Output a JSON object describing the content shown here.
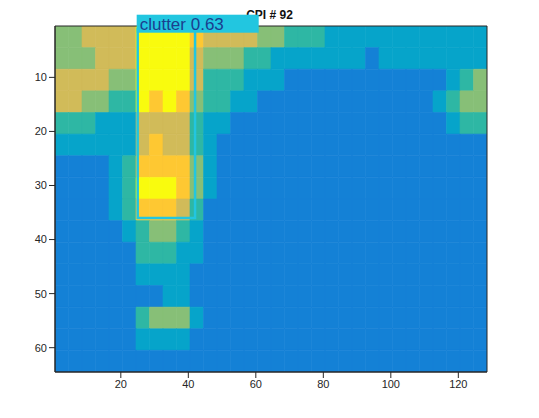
{
  "chart_data": {
    "type": "heatmap",
    "title": "CPI # 92",
    "xlim": [
      0.5,
      128.5
    ],
    "ylim": [
      0.5,
      64.5
    ],
    "xticks": [
      20,
      40,
      60,
      80,
      100,
      120
    ],
    "yticks": [
      10,
      20,
      30,
      40,
      50,
      60
    ],
    "clim": [
      1,
      9
    ],
    "cells": [
      [
        6,
        6,
        7,
        7,
        7,
        7,
        9,
        9,
        9,
        9,
        8,
        7,
        7,
        7,
        7,
        6,
        6,
        5,
        5,
        5,
        4,
        4,
        4,
        4,
        4,
        4,
        4,
        4,
        4,
        4,
        4,
        4
      ],
      [
        6,
        6,
        6,
        7,
        7,
        7,
        9,
        9,
        9,
        9,
        7,
        6,
        6,
        6,
        5,
        5,
        4,
        4,
        4,
        4,
        4,
        4,
        4,
        3,
        4,
        4,
        4,
        4,
        4,
        4,
        4,
        4
      ],
      [
        7,
        7,
        7,
        7,
        6,
        6,
        9,
        9,
        9,
        9,
        7,
        5,
        5,
        5,
        4,
        4,
        4,
        3,
        3,
        3,
        3,
        3,
        3,
        3,
        3,
        3,
        3,
        3,
        3,
        4,
        5,
        6
      ],
      [
        7,
        7,
        6,
        6,
        5,
        5,
        9,
        8,
        9,
        8,
        6,
        5,
        5,
        4,
        4,
        3,
        3,
        3,
        3,
        3,
        3,
        3,
        3,
        3,
        3,
        3,
        3,
        3,
        4,
        5,
        6,
        6
      ],
      [
        5,
        5,
        5,
        4,
        4,
        4,
        7,
        7,
        7,
        7,
        5,
        4,
        4,
        3,
        3,
        3,
        3,
        3,
        3,
        3,
        3,
        3,
        3,
        3,
        3,
        3,
        3,
        3,
        3,
        4,
        5,
        5
      ],
      [
        4,
        4,
        4,
        4,
        4,
        4,
        7,
        8,
        7,
        7,
        5,
        4,
        3,
        3,
        3,
        3,
        3,
        3,
        3,
        3,
        3,
        3,
        3,
        3,
        3,
        3,
        3,
        3,
        3,
        3,
        3,
        3
      ],
      [
        3,
        3,
        3,
        3,
        4,
        5,
        8,
        8,
        8,
        8,
        6,
        4,
        3,
        3,
        3,
        3,
        3,
        3,
        3,
        3,
        3,
        3,
        3,
        3,
        3,
        3,
        3,
        3,
        3,
        3,
        3,
        3
      ],
      [
        3,
        3,
        3,
        3,
        4,
        5,
        9,
        9,
        9,
        8,
        6,
        4,
        3,
        3,
        3,
        3,
        3,
        3,
        3,
        3,
        3,
        3,
        3,
        3,
        3,
        3,
        3,
        3,
        3,
        3,
        3,
        3
      ],
      [
        3,
        3,
        3,
        3,
        4,
        5,
        8,
        8,
        8,
        7,
        5,
        3,
        3,
        3,
        3,
        3,
        3,
        3,
        3,
        3,
        3,
        3,
        3,
        3,
        3,
        3,
        3,
        3,
        3,
        3,
        3,
        3
      ],
      [
        3,
        3,
        3,
        3,
        3,
        4,
        5,
        6,
        6,
        5,
        4,
        3,
        3,
        3,
        3,
        3,
        3,
        3,
        3,
        3,
        3,
        3,
        3,
        3,
        3,
        3,
        3,
        3,
        3,
        3,
        3,
        3
      ],
      [
        3,
        3,
        3,
        3,
        3,
        3,
        5,
        5,
        5,
        4,
        4,
        3,
        3,
        3,
        3,
        3,
        3,
        3,
        3,
        3,
        3,
        3,
        3,
        3,
        3,
        3,
        3,
        3,
        3,
        3,
        3,
        3
      ],
      [
        3,
        3,
        3,
        3,
        3,
        3,
        4,
        4,
        4,
        4,
        3,
        3,
        3,
        3,
        3,
        3,
        3,
        3,
        3,
        3,
        3,
        3,
        3,
        3,
        3,
        3,
        3,
        3,
        3,
        3,
        3,
        3
      ],
      [
        3,
        3,
        3,
        3,
        3,
        3,
        3,
        3,
        4,
        4,
        3,
        3,
        3,
        3,
        3,
        3,
        3,
        3,
        3,
        3,
        3,
        3,
        3,
        3,
        3,
        3,
        3,
        3,
        3,
        3,
        3,
        3
      ],
      [
        3,
        3,
        3,
        3,
        3,
        3,
        5,
        6,
        6,
        6,
        4,
        3,
        3,
        3,
        3,
        3,
        3,
        3,
        3,
        3,
        3,
        3,
        3,
        3,
        3,
        3,
        3,
        3,
        3,
        3,
        3,
        3
      ],
      [
        3,
        3,
        3,
        3,
        3,
        3,
        4,
        4,
        4,
        4,
        3,
        3,
        3,
        3,
        3,
        3,
        3,
        3,
        3,
        3,
        3,
        3,
        3,
        3,
        3,
        3,
        3,
        3,
        3,
        3,
        3,
        3
      ],
      [
        3,
        3,
        3,
        3,
        3,
        3,
        3,
        3,
        3,
        3,
        3,
        3,
        3,
        3,
        3,
        3,
        3,
        3,
        3,
        3,
        3,
        3,
        3,
        3,
        3,
        3,
        3,
        3,
        3,
        3,
        3,
        3
      ]
    ],
    "boxes": [
      {
        "x": [
          25,
          42
        ],
        "y": [
          1,
          36
        ],
        "label": "clutter 0.63",
        "color": "#22c6e0"
      }
    ]
  }
}
